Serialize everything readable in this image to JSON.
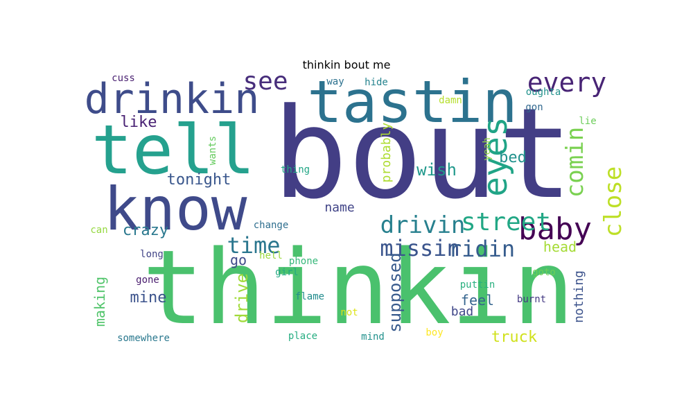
{
  "title": "thinkin bout me",
  "words": [
    {
      "text": "bout",
      "color": "#433e85",
      "orientation": "horizontal"
    },
    {
      "text": "thinkin",
      "color": "#4ac16d",
      "orientation": "horizontal"
    },
    {
      "text": "tastin",
      "color": "#2c728e",
      "orientation": "horizontal"
    },
    {
      "text": "tell",
      "color": "#25a18e",
      "orientation": "horizontal"
    },
    {
      "text": "know",
      "color": "#3f4a8a",
      "orientation": "horizontal"
    },
    {
      "text": "drinkin",
      "color": "#3e4c8a",
      "orientation": "horizontal"
    },
    {
      "text": "every",
      "color": "#482475",
      "orientation": "horizontal"
    },
    {
      "text": "see",
      "color": "#472d7b",
      "orientation": "horizontal"
    },
    {
      "text": "eyes",
      "color": "#20a486",
      "orientation": "vertical"
    },
    {
      "text": "comin",
      "color": "#7ad151",
      "orientation": "vertical"
    },
    {
      "text": "close",
      "color": "#bddf26",
      "orientation": "vertical"
    },
    {
      "text": "baby",
      "color": "#440154",
      "orientation": "horizontal"
    },
    {
      "text": "street",
      "color": "#22a785",
      "orientation": "horizontal"
    },
    {
      "text": "drivin",
      "color": "#27808e",
      "orientation": "horizontal"
    },
    {
      "text": "missin",
      "color": "#3a548c",
      "orientation": "horizontal"
    },
    {
      "text": "ridin",
      "color": "#365c8d",
      "orientation": "horizontal"
    },
    {
      "text": "time",
      "color": "#2a768e",
      "orientation": "horizontal"
    },
    {
      "text": "wish",
      "color": "#1f988b",
      "orientation": "horizontal"
    },
    {
      "text": "tonight",
      "color": "#39568c",
      "orientation": "horizontal"
    },
    {
      "text": "like",
      "color": "#482173",
      "orientation": "horizontal"
    },
    {
      "text": "bed",
      "color": "#21918c",
      "orientation": "horizontal"
    },
    {
      "text": "crazy",
      "color": "#2a788e",
      "orientation": "horizontal"
    },
    {
      "text": "name",
      "color": "#414487",
      "orientation": "horizontal"
    },
    {
      "text": "probably",
      "color": "#addc30",
      "orientation": "vertical"
    },
    {
      "text": "head",
      "color": "#a5db36",
      "orientation": "horizontal"
    },
    {
      "text": "mine",
      "color": "#3b528b",
      "orientation": "horizontal"
    },
    {
      "text": "feel",
      "color": "#33638d",
      "orientation": "horizontal"
    },
    {
      "text": "bad",
      "color": "#3f4788",
      "orientation": "horizontal"
    },
    {
      "text": "truck",
      "color": "#d0e11c",
      "orientation": "horizontal"
    },
    {
      "text": "supposed",
      "color": "#375a8c",
      "orientation": "vertical"
    },
    {
      "text": "making",
      "color": "#50c46a",
      "orientation": "vertical"
    },
    {
      "text": "drive",
      "color": "#a0da39",
      "orientation": "vertical"
    },
    {
      "text": "nothing",
      "color": "#3b528b",
      "orientation": "vertical"
    },
    {
      "text": "go",
      "color": "#3e4a89",
      "orientation": "horizontal"
    },
    {
      "text": "wants",
      "color": "#65cb5e",
      "orientation": "vertical"
    },
    {
      "text": "yeah",
      "color": "#90d743",
      "orientation": "vertical"
    },
    {
      "text": "thing",
      "color": "#21a685",
      "orientation": "horizontal"
    },
    {
      "text": "cuss",
      "color": "#481f70",
      "orientation": "horizontal"
    },
    {
      "text": "way",
      "color": "#2c718e",
      "orientation": "horizontal"
    },
    {
      "text": "hide",
      "color": "#25838e",
      "orientation": "horizontal"
    },
    {
      "text": "oughta",
      "color": "#21918c",
      "orientation": "horizontal"
    },
    {
      "text": "damn",
      "color": "#b5de2b",
      "orientation": "horizontal"
    },
    {
      "text": "gon",
      "color": "#31688e",
      "orientation": "horizontal"
    },
    {
      "text": "lie",
      "color": "#6ccd5a",
      "orientation": "horizontal"
    },
    {
      "text": "can",
      "color": "#95d840",
      "orientation": "horizontal"
    },
    {
      "text": "change",
      "color": "#2e6e8e",
      "orientation": "horizontal"
    },
    {
      "text": "long",
      "color": "#414487",
      "orientation": "horizontal"
    },
    {
      "text": "hell",
      "color": "#9bd93c",
      "orientation": "horizontal"
    },
    {
      "text": "phone",
      "color": "#35b779",
      "orientation": "horizontal"
    },
    {
      "text": "girl",
      "color": "#22a884",
      "orientation": "horizontal"
    },
    {
      "text": "goto",
      "color": "#6ece58",
      "orientation": "horizontal"
    },
    {
      "text": "gone",
      "color": "#481b6d",
      "orientation": "horizontal"
    },
    {
      "text": "puttin",
      "color": "#2ab07f",
      "orientation": "horizontal"
    },
    {
      "text": "flame",
      "color": "#228c8d",
      "orientation": "horizontal"
    },
    {
      "text": "burnt",
      "color": "#443983",
      "orientation": "horizontal"
    },
    {
      "text": "not",
      "color": "#dde318",
      "orientation": "horizontal"
    },
    {
      "text": "boy",
      "color": "#fde725",
      "orientation": "horizontal"
    },
    {
      "text": "somewhere",
      "color": "#2a788e",
      "orientation": "horizontal"
    },
    {
      "text": "place",
      "color": "#26ad81",
      "orientation": "horizontal"
    },
    {
      "text": "mind",
      "color": "#21918c",
      "orientation": "horizontal"
    }
  ]
}
